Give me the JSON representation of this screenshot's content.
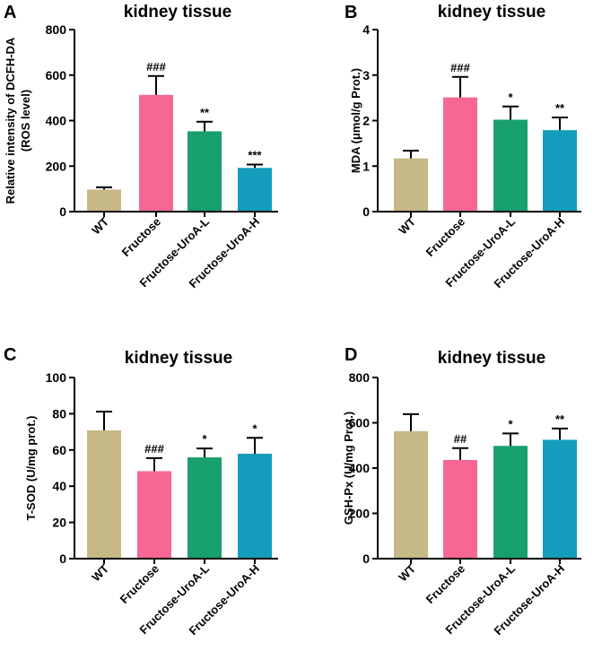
{
  "colors": {
    "WT": "#c6b985",
    "Fructose": "#f66893",
    "Fructose-UroA-L": "#18a06c",
    "Fructose-UroA-H": "#139cbc"
  },
  "chart_data": [
    {
      "panel": "A",
      "type": "bar",
      "title": "kidney tissue",
      "ylabel": [
        "Relative intensity of DCFH-DA",
        "(ROS level)"
      ],
      "categories": [
        "WT",
        "Fructose",
        "Fructose-UroA-L",
        "Fructose-UroA-H"
      ],
      "values": [
        97,
        513,
        353,
        192
      ],
      "errors": [
        10,
        83,
        42,
        15
      ],
      "significance": [
        "",
        "###",
        "**",
        "***"
      ],
      "ylim": [
        0,
        800
      ],
      "yticks": [
        0,
        200,
        400,
        600,
        800
      ],
      "ytick_labels": [
        "0",
        "200",
        "400",
        "600",
        "800"
      ]
    },
    {
      "panel": "B",
      "type": "bar",
      "title": "kidney tissue",
      "ylabel": [
        "MDA (μmol/g Prot.)"
      ],
      "categories": [
        "WT",
        "Fructose",
        "Fructose-UroA-L",
        "Fructose-UroA-H"
      ],
      "values": [
        1.17,
        2.51,
        2.02,
        1.79
      ],
      "errors": [
        0.17,
        0.45,
        0.29,
        0.28
      ],
      "significance": [
        "",
        "###",
        "*",
        "**"
      ],
      "ylim": [
        0,
        4
      ],
      "yticks": [
        0,
        1,
        2,
        3,
        4
      ],
      "ytick_labels": [
        "0",
        "1",
        "2",
        "3",
        "4"
      ]
    },
    {
      "panel": "C",
      "type": "bar",
      "title": "kidney tissue",
      "ylabel": [
        "T-SOD (U/mg prot.)"
      ],
      "categories": [
        "WT",
        "Fructose",
        "Fructose-UroA-L",
        "Fructose-UroA-H"
      ],
      "values": [
        70.8,
        48.3,
        55.9,
        57.9
      ],
      "errors": [
        10.4,
        7.2,
        4.9,
        8.8
      ],
      "significance": [
        "",
        "###",
        "*",
        "*"
      ],
      "ylim": [
        0,
        100
      ],
      "yticks": [
        0,
        20,
        40,
        60,
        80,
        100
      ],
      "ytick_labels": [
        "0",
        "20",
        "40",
        "60",
        "80",
        "100"
      ]
    },
    {
      "panel": "D",
      "type": "bar",
      "title": "kidney tissue",
      "ylabel": [
        "GSH-Px (U/mg Prot.)"
      ],
      "categories": [
        "WT",
        "Fructose",
        "Fructose-UroA-L",
        "Fructose-UroA-H"
      ],
      "values": [
        563,
        436,
        498,
        525
      ],
      "errors": [
        75,
        52,
        55,
        50
      ],
      "significance": [
        "",
        "##",
        "*",
        "**"
      ],
      "ylim": [
        0,
        800
      ],
      "yticks": [
        0,
        200,
        400,
        600,
        800
      ],
      "ytick_labels": [
        "0",
        "200",
        "400",
        "600",
        "800"
      ]
    }
  ]
}
